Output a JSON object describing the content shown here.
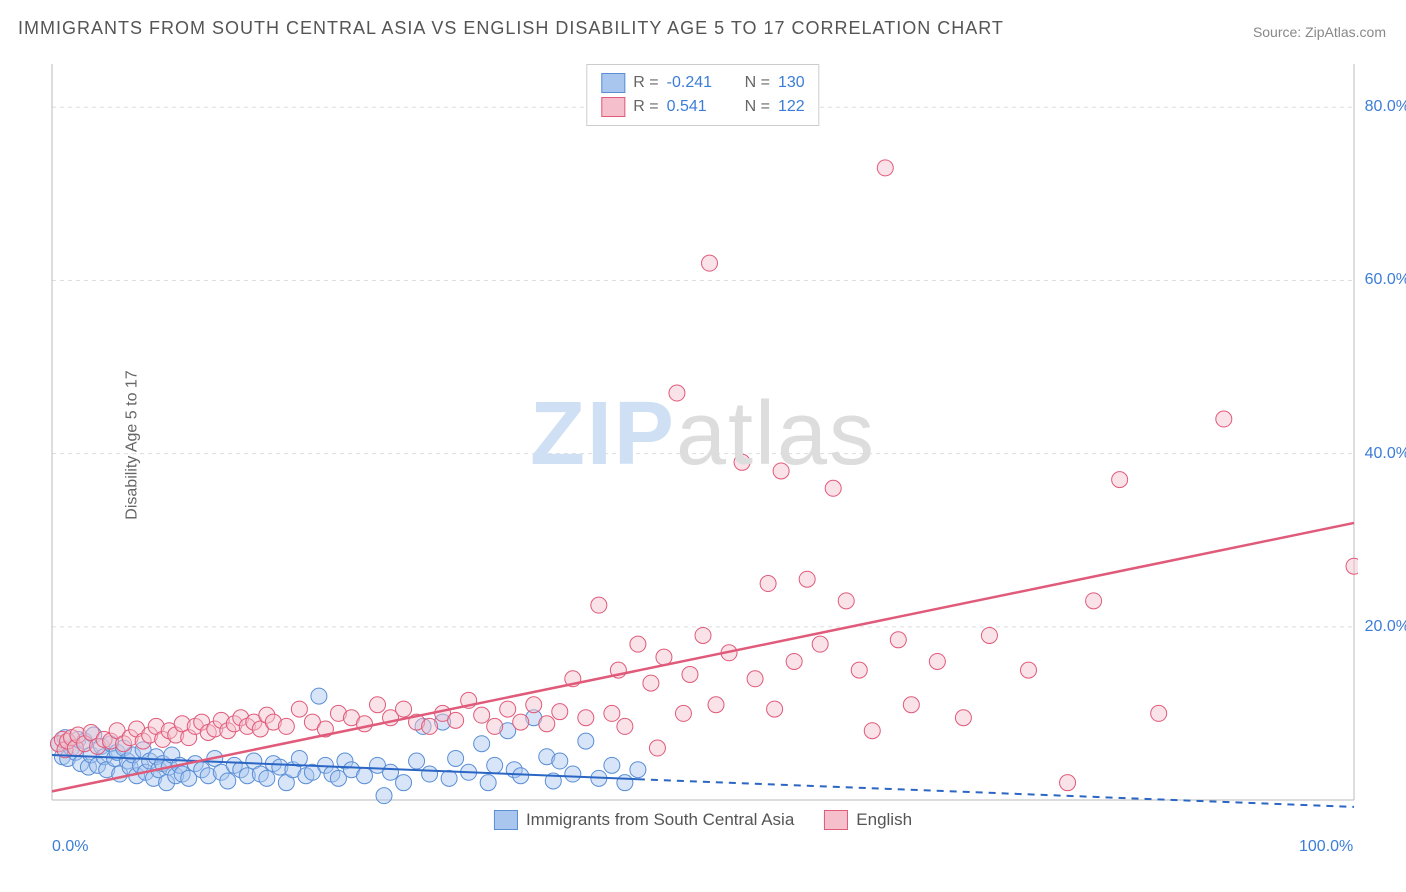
{
  "title": "IMMIGRANTS FROM SOUTH CENTRAL ASIA VS ENGLISH DISABILITY AGE 5 TO 17 CORRELATION CHART",
  "source": "Source: ZipAtlas.com",
  "ylabel": "Disability Age 5 to 17",
  "watermark_a": "ZIP",
  "watermark_b": "atlas",
  "chart": {
    "type": "scatter",
    "xlim": [
      0,
      100
    ],
    "ylim": [
      0,
      85
    ],
    "xticks": [
      {
        "v": 0,
        "l": "0.0%"
      },
      {
        "v": 100,
        "l": "100.0%"
      }
    ],
    "yticks": [
      {
        "v": 20,
        "l": "20.0%"
      },
      {
        "v": 40,
        "l": "40.0%"
      },
      {
        "v": 60,
        "l": "60.0%"
      },
      {
        "v": 80,
        "l": "80.0%"
      }
    ],
    "grid_color": "#dddddd",
    "axis_color": "#bbbbbb",
    "marker_radius": 8,
    "marker_opacity": 0.45,
    "series": [
      {
        "id": "immigrants",
        "label": "Immigrants from South Central Asia",
        "color_fill": "#a9c6ef",
        "color_stroke": "#5a8fd6",
        "R": "-0.241",
        "N": "130",
        "trend": {
          "x1": 0,
          "y1": 5.2,
          "x2": 45,
          "y2": 2.4,
          "dash_after_x": 45,
          "x3": 100,
          "y3": -0.8,
          "color": "#2b66c4",
          "width": 2
        },
        "points": [
          [
            0.5,
            6.5
          ],
          [
            0.8,
            5.0
          ],
          [
            1.0,
            7.2
          ],
          [
            1.2,
            4.8
          ],
          [
            1.5,
            6.0
          ],
          [
            1.8,
            5.5
          ],
          [
            2.0,
            7.0
          ],
          [
            2.2,
            4.2
          ],
          [
            2.5,
            6.8
          ],
          [
            2.8,
            3.8
          ],
          [
            3.0,
            5.2
          ],
          [
            3.2,
            7.5
          ],
          [
            3.5,
            4.0
          ],
          [
            3.8,
            6.2
          ],
          [
            4.0,
            5.0
          ],
          [
            4.2,
            3.5
          ],
          [
            4.5,
            6.5
          ],
          [
            4.8,
            4.8
          ],
          [
            5.0,
            5.5
          ],
          [
            5.2,
            3.0
          ],
          [
            5.5,
            6.0
          ],
          [
            5.8,
            4.5
          ],
          [
            6.0,
            3.8
          ],
          [
            6.2,
            5.2
          ],
          [
            6.5,
            2.8
          ],
          [
            6.8,
            4.0
          ],
          [
            7.0,
            5.8
          ],
          [
            7.2,
            3.2
          ],
          [
            7.5,
            4.5
          ],
          [
            7.8,
            2.5
          ],
          [
            8.0,
            5.0
          ],
          [
            8.2,
            3.5
          ],
          [
            8.5,
            4.2
          ],
          [
            8.8,
            2.0
          ],
          [
            9.0,
            3.8
          ],
          [
            9.2,
            5.2
          ],
          [
            9.5,
            2.8
          ],
          [
            9.8,
            4.0
          ],
          [
            10.0,
            3.0
          ],
          [
            10.5,
            2.5
          ],
          [
            11.0,
            4.2
          ],
          [
            11.5,
            3.5
          ],
          [
            12.0,
            2.8
          ],
          [
            12.5,
            4.8
          ],
          [
            13.0,
            3.2
          ],
          [
            13.5,
            2.2
          ],
          [
            14.0,
            4.0
          ],
          [
            14.5,
            3.5
          ],
          [
            15.0,
            2.8
          ],
          [
            15.5,
            4.5
          ],
          [
            16.0,
            3.0
          ],
          [
            16.5,
            2.5
          ],
          [
            17.0,
            4.2
          ],
          [
            17.5,
            3.8
          ],
          [
            18.0,
            2.0
          ],
          [
            18.5,
            3.5
          ],
          [
            19.0,
            4.8
          ],
          [
            19.5,
            2.8
          ],
          [
            20.0,
            3.2
          ],
          [
            20.5,
            12.0
          ],
          [
            21.0,
            4.0
          ],
          [
            21.5,
            3.0
          ],
          [
            22.0,
            2.5
          ],
          [
            22.5,
            4.5
          ],
          [
            23.0,
            3.5
          ],
          [
            24.0,
            2.8
          ],
          [
            25.0,
            4.0
          ],
          [
            25.5,
            0.5
          ],
          [
            26.0,
            3.2
          ],
          [
            27.0,
            2.0
          ],
          [
            28.0,
            4.5
          ],
          [
            28.5,
            8.5
          ],
          [
            29.0,
            3.0
          ],
          [
            30.0,
            9.0
          ],
          [
            30.5,
            2.5
          ],
          [
            31.0,
            4.8
          ],
          [
            32.0,
            3.2
          ],
          [
            33.0,
            6.5
          ],
          [
            33.5,
            2.0
          ],
          [
            34.0,
            4.0
          ],
          [
            35.0,
            8.0
          ],
          [
            35.5,
            3.5
          ],
          [
            36.0,
            2.8
          ],
          [
            37.0,
            9.5
          ],
          [
            38.0,
            5.0
          ],
          [
            38.5,
            2.2
          ],
          [
            39.0,
            4.5
          ],
          [
            40.0,
            3.0
          ],
          [
            41.0,
            6.8
          ],
          [
            42.0,
            2.5
          ],
          [
            43.0,
            4.0
          ],
          [
            44.0,
            2.0
          ],
          [
            45.0,
            3.5
          ]
        ]
      },
      {
        "id": "english",
        "label": "English",
        "color_fill": "#f5c0cc",
        "color_stroke": "#e05a7a",
        "R": "0.541",
        "N": "122",
        "trend": {
          "x1": 0,
          "y1": 1.0,
          "x2": 100,
          "y2": 32.0,
          "color": "#e05a7a",
          "width": 2.5
        },
        "points": [
          [
            0.5,
            6.5
          ],
          [
            0.8,
            7.0
          ],
          [
            1.0,
            5.8
          ],
          [
            1.2,
            6.8
          ],
          [
            1.5,
            7.2
          ],
          [
            1.8,
            6.0
          ],
          [
            2.0,
            7.5
          ],
          [
            2.5,
            6.5
          ],
          [
            3.0,
            7.8
          ],
          [
            3.5,
            6.2
          ],
          [
            4.0,
            7.0
          ],
          [
            4.5,
            6.8
          ],
          [
            5.0,
            8.0
          ],
          [
            5.5,
            6.5
          ],
          [
            6.0,
            7.2
          ],
          [
            6.5,
            8.2
          ],
          [
            7.0,
            6.8
          ],
          [
            7.5,
            7.5
          ],
          [
            8.0,
            8.5
          ],
          [
            8.5,
            7.0
          ],
          [
            9.0,
            8.0
          ],
          [
            9.5,
            7.5
          ],
          [
            10.0,
            8.8
          ],
          [
            10.5,
            7.2
          ],
          [
            11.0,
            8.5
          ],
          [
            11.5,
            9.0
          ],
          [
            12.0,
            7.8
          ],
          [
            12.5,
            8.2
          ],
          [
            13.0,
            9.2
          ],
          [
            13.5,
            8.0
          ],
          [
            14.0,
            8.8
          ],
          [
            14.5,
            9.5
          ],
          [
            15.0,
            8.5
          ],
          [
            15.5,
            9.0
          ],
          [
            16.0,
            8.2
          ],
          [
            16.5,
            9.8
          ],
          [
            17.0,
            9.0
          ],
          [
            18.0,
            8.5
          ],
          [
            19.0,
            10.5
          ],
          [
            20.0,
            9.0
          ],
          [
            21.0,
            8.2
          ],
          [
            22.0,
            10.0
          ],
          [
            23.0,
            9.5
          ],
          [
            24.0,
            8.8
          ],
          [
            25.0,
            11.0
          ],
          [
            26.0,
            9.5
          ],
          [
            27.0,
            10.5
          ],
          [
            28.0,
            9.0
          ],
          [
            29.0,
            8.5
          ],
          [
            30.0,
            10.0
          ],
          [
            31.0,
            9.2
          ],
          [
            32.0,
            11.5
          ],
          [
            33.0,
            9.8
          ],
          [
            34.0,
            8.5
          ],
          [
            35.0,
            10.5
          ],
          [
            36.0,
            9.0
          ],
          [
            37.0,
            11.0
          ],
          [
            38.0,
            8.8
          ],
          [
            39.0,
            10.2
          ],
          [
            40.0,
            14.0
          ],
          [
            41.0,
            9.5
          ],
          [
            42.0,
            22.5
          ],
          [
            43.0,
            10.0
          ],
          [
            43.5,
            15.0
          ],
          [
            44.0,
            8.5
          ],
          [
            45.0,
            18.0
          ],
          [
            46.0,
            13.5
          ],
          [
            46.5,
            6.0
          ],
          [
            47.0,
            16.5
          ],
          [
            48.0,
            47.0
          ],
          [
            48.5,
            10.0
          ],
          [
            49.0,
            14.5
          ],
          [
            50.0,
            19.0
          ],
          [
            50.5,
            62.0
          ],
          [
            51.0,
            11.0
          ],
          [
            52.0,
            17.0
          ],
          [
            53.0,
            39.0
          ],
          [
            54.0,
            14.0
          ],
          [
            55.0,
            25.0
          ],
          [
            55.5,
            10.5
          ],
          [
            56.0,
            38.0
          ],
          [
            57.0,
            16.0
          ],
          [
            58.0,
            25.5
          ],
          [
            59.0,
            18.0
          ],
          [
            60.0,
            36.0
          ],
          [
            61.0,
            23.0
          ],
          [
            62.0,
            15.0
          ],
          [
            63.0,
            8.0
          ],
          [
            64.0,
            73.0
          ],
          [
            65.0,
            18.5
          ],
          [
            66.0,
            11.0
          ],
          [
            68.0,
            16.0
          ],
          [
            70.0,
            9.5
          ],
          [
            72.0,
            19.0
          ],
          [
            75.0,
            15.0
          ],
          [
            78.0,
            2.0
          ],
          [
            80.0,
            23.0
          ],
          [
            82.0,
            37.0
          ],
          [
            85.0,
            10.0
          ],
          [
            90.0,
            44.0
          ],
          [
            100.0,
            27.0
          ]
        ]
      }
    ]
  },
  "legend_top": [
    {
      "swatch_fill": "#a9c6ef",
      "swatch_stroke": "#5a8fd6",
      "r_label": "R =",
      "r_val": "-0.241",
      "n_label": "N =",
      "n_val": "130"
    },
    {
      "swatch_fill": "#f5c0cc",
      "swatch_stroke": "#e05a7a",
      "r_label": "R =",
      "r_val": "0.541",
      "n_label": "N =",
      "n_val": "122"
    }
  ],
  "legend_bottom": [
    {
      "swatch_fill": "#a9c6ef",
      "swatch_stroke": "#5a8fd6",
      "label": "Immigrants from South Central Asia"
    },
    {
      "swatch_fill": "#f5c0cc",
      "swatch_stroke": "#e05a7a",
      "label": "English"
    }
  ]
}
